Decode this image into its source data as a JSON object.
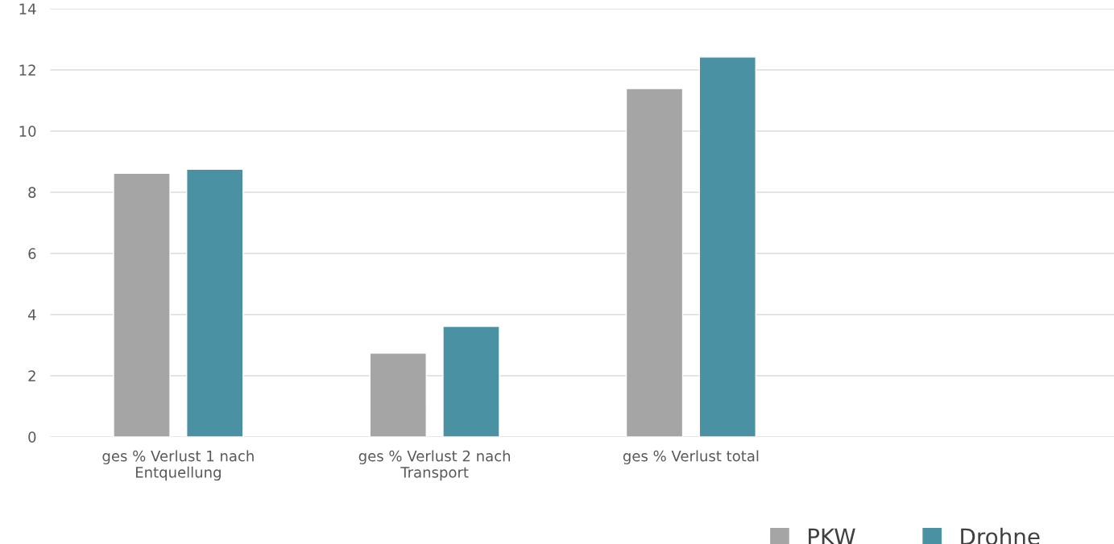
{
  "chart_data": {
    "type": "bar",
    "categories": [
      "ges % Verlust 1 nach\nEntquellung",
      "ges % Verlust 2 nach\nTransport",
      "ges % Verlust total"
    ],
    "series": [
      {
        "name": "PKW",
        "color": "#a5a5a5",
        "values": [
          8.62,
          2.74,
          11.39
        ]
      },
      {
        "name": "Drohne",
        "color": "#4a92a3",
        "values": [
          8.75,
          3.61,
          12.42
        ]
      }
    ],
    "ylim": [
      0,
      14
    ],
    "yticks": [
      0,
      2,
      4,
      6,
      8,
      10,
      12,
      14
    ],
    "grid": "y",
    "legend": "bottom right"
  }
}
